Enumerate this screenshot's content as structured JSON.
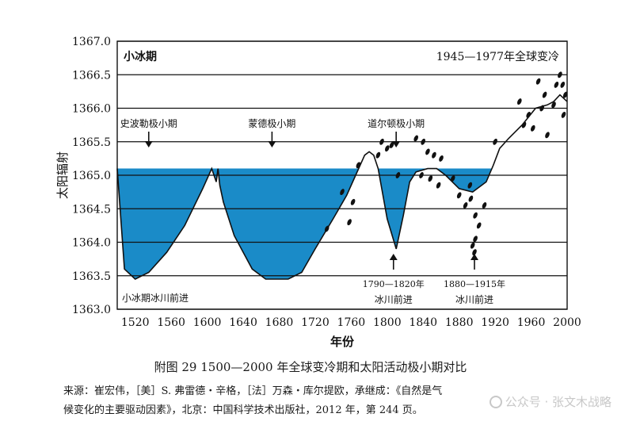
{
  "figure": {
    "caption": "附图 29    1500—2000 年全球变冷期和太阳活动极小期对比",
    "source_line1": "来源：崔宏伟，［美］S. 弗雷德・辛格，［法］万森・库尔提欧，承继成：《自然是气",
    "source_line2": "候变化的主要驱动因素》，北京：中国科学技术出版社，2012 年，第 244 页。",
    "watermark": "公众号 · 张文木战略"
  },
  "chart_data": {
    "type": "area",
    "title": "",
    "xlabel": "年份",
    "ylabel": "太阳辐射",
    "xlim": [
      1500,
      2000
    ],
    "ylim": [
      1363.0,
      1367.0
    ],
    "x_ticks": [
      1520,
      1560,
      1600,
      1640,
      1680,
      1720,
      1760,
      1800,
      1840,
      1880,
      1920,
      1960,
      2000
    ],
    "y_ticks": [
      "1363.0",
      "1363.5",
      "1364.0",
      "1364.5",
      "1365.0",
      "1365.5",
      "1366.0",
      "1366.5",
      "1367.0"
    ],
    "grid": "horizontal",
    "reference_level": 1365.1,
    "series": [
      {
        "values_x": [
          1500,
          1508,
          1520,
          1535,
          1555,
          1575,
          1595,
          1605,
          1610,
          1612,
          1614,
          1618,
          1630,
          1650,
          1665,
          1690,
          1705,
          1720,
          1740,
          1755,
          1765,
          1775,
          1780,
          1785,
          1790,
          1800,
          1810,
          1818,
          1825,
          1832,
          1845,
          1855,
          1865,
          1880,
          1895,
          1910,
          1918,
          1925,
          1935,
          1950,
          1965,
          1978,
          1985,
          1992,
          2000
        ],
        "values_y": [
          1365.1,
          1363.6,
          1363.45,
          1363.55,
          1363.85,
          1364.25,
          1364.8,
          1365.1,
          1364.9,
          1365.1,
          1364.85,
          1364.6,
          1364.1,
          1363.6,
          1363.45,
          1363.45,
          1363.55,
          1363.9,
          1364.35,
          1364.7,
          1365.0,
          1365.3,
          1365.35,
          1365.3,
          1365.1,
          1364.35,
          1363.9,
          1364.4,
          1364.9,
          1365.05,
          1365.1,
          1365.1,
          1365.0,
          1364.8,
          1364.75,
          1364.9,
          1365.15,
          1365.4,
          1365.55,
          1365.75,
          1366.0,
          1366.05,
          1366.1,
          1366.2,
          1366.1
        ]
      }
    ],
    "scatter_points": [
      [
        1733,
        1364.2
      ],
      [
        1750,
        1364.75
      ],
      [
        1758,
        1364.3
      ],
      [
        1762,
        1364.6
      ],
      [
        1768,
        1365.15
      ],
      [
        1790,
        1365.3
      ],
      [
        1794,
        1365.5
      ],
      [
        1800,
        1365.4
      ],
      [
        1805,
        1365.45
      ],
      [
        1812,
        1365.0
      ],
      [
        1832,
        1365.55
      ],
      [
        1840,
        1365.5
      ],
      [
        1845,
        1365.35
      ],
      [
        1838,
        1365.0
      ],
      [
        1848,
        1364.95
      ],
      [
        1852,
        1365.3
      ],
      [
        1860,
        1365.25
      ],
      [
        1857,
        1364.85
      ],
      [
        1873,
        1364.95
      ],
      [
        1880,
        1364.7
      ],
      [
        1887,
        1364.55
      ],
      [
        1893,
        1364.65
      ],
      [
        1898,
        1364.4
      ],
      [
        1902,
        1364.25
      ],
      [
        1895,
        1363.95
      ],
      [
        1898,
        1364.05
      ],
      [
        1897,
        1363.85
      ],
      [
        1892,
        1364.85
      ],
      [
        1908,
        1364.55
      ],
      [
        1920,
        1365.5
      ],
      [
        1947,
        1366.1
      ],
      [
        1952,
        1365.75
      ],
      [
        1957,
        1365.9
      ],
      [
        1962,
        1365.7
      ],
      [
        1968,
        1366.4
      ],
      [
        1972,
        1366.0
      ],
      [
        1975,
        1366.2
      ],
      [
        1978,
        1365.6
      ],
      [
        1985,
        1366.05
      ],
      [
        1988,
        1366.35
      ],
      [
        1992,
        1366.5
      ],
      [
        1995,
        1366.35
      ],
      [
        1998,
        1366.2
      ],
      [
        1996,
        1365.9
      ]
    ],
    "annotations": {
      "top_left": "小冰期",
      "top_right": "1945—1977年全球变冷",
      "minima": [
        {
          "label": "史波勒极小期",
          "x": 1535
        },
        {
          "label": "蒙德极小期",
          "x": 1672
        },
        {
          "label": "道尔顿极小期",
          "x": 1810
        }
      ],
      "bottom_left": "小冰期冰川前进",
      "glacier_advances": [
        {
          "years": "1790—1820年",
          "label": "冰川前进",
          "x": 1807
        },
        {
          "years": "1880—1915年",
          "label": "冰川前进",
          "x": 1897
        }
      ]
    }
  }
}
